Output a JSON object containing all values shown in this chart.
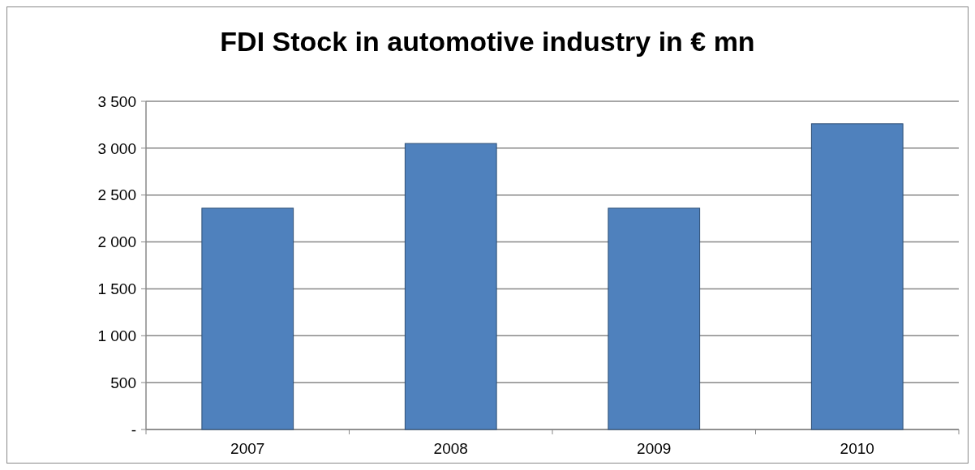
{
  "chart_data": {
    "type": "bar",
    "title": "FDI Stock in automotive industry in € mn",
    "categories": [
      "2007",
      "2008",
      "2009",
      "2010"
    ],
    "series": [
      {
        "color": "#4f81bd",
        "values": [
          2360,
          3050,
          2360,
          3260
        ]
      }
    ],
    "ylim": [
      0,
      3500
    ],
    "yticks": [
      {
        "value": 0,
        "label": "-"
      },
      {
        "value": 500,
        "label": "500"
      },
      {
        "value": 1000,
        "label": "1 000"
      },
      {
        "value": 1500,
        "label": "1 500"
      },
      {
        "value": 2000,
        "label": "2 000"
      },
      {
        "value": 2500,
        "label": "2 500"
      },
      {
        "value": 3000,
        "label": "3 000"
      },
      {
        "value": 3500,
        "label": "3 500"
      }
    ],
    "grid": "y"
  }
}
